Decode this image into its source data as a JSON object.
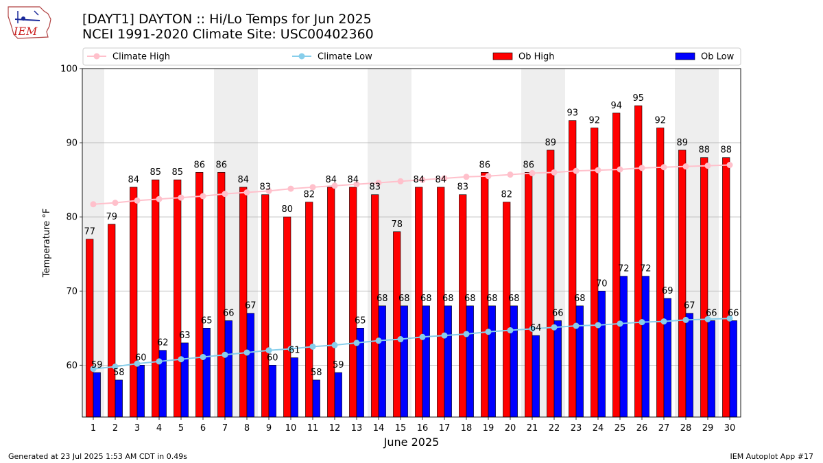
{
  "title_line1": "[DAYT1] DAYTON :: Hi/Lo Temps for Jun 2025",
  "title_line2": "NCEI 1991-2020 Climate Site: USC00402360",
  "logo_text": "IEM",
  "footer_left": "Generated at 23 Jul 2025 1:53 AM CDT in 0.49s",
  "footer_right": "IEM Autoplot App #17",
  "colors": {
    "ob_high": "#ff0000",
    "ob_low": "#0000ff",
    "climate_high": "#ffc0cb",
    "climate_low": "#87ceeb",
    "weekend_shade": "#eeeeee",
    "grid": "#b0b0b0"
  },
  "chart_data": {
    "type": "bar",
    "xlabel": "June 2025",
    "ylabel": "Temperature °F",
    "ylim": [
      53,
      100
    ],
    "yticks": [
      60,
      70,
      80,
      90,
      100
    ],
    "grid": "horizontal",
    "legend_position": "top",
    "categories": [
      "1",
      "2",
      "3",
      "4",
      "5",
      "6",
      "7",
      "8",
      "9",
      "10",
      "11",
      "12",
      "13",
      "14",
      "15",
      "16",
      "17",
      "18",
      "19",
      "20",
      "21",
      "22",
      "23",
      "24",
      "25",
      "26",
      "27",
      "28",
      "29",
      "30"
    ],
    "shaded_days": [
      1,
      7,
      8,
      14,
      15,
      21,
      22,
      28,
      29
    ],
    "series": [
      {
        "name": "Climate High",
        "kind": "line",
        "color": "#ffc0cb",
        "values": [
          81.7,
          81.9,
          82.2,
          82.4,
          82.6,
          82.8,
          83.1,
          83.3,
          83.5,
          83.8,
          84.0,
          84.2,
          84.4,
          84.6,
          84.8,
          85.0,
          85.2,
          85.4,
          85.5,
          85.7,
          85.9,
          86.0,
          86.2,
          86.3,
          86.4,
          86.6,
          86.7,
          86.8,
          86.9,
          87.0
        ]
      },
      {
        "name": "Climate Low",
        "kind": "line",
        "color": "#87ceeb",
        "values": [
          59.5,
          59.8,
          60.2,
          60.5,
          60.8,
          61.1,
          61.4,
          61.7,
          62.0,
          62.2,
          62.5,
          62.7,
          63.0,
          63.3,
          63.5,
          63.8,
          64.0,
          64.2,
          64.5,
          64.7,
          64.9,
          65.1,
          65.3,
          65.4,
          65.6,
          65.8,
          65.9,
          66.1,
          66.2,
          66.3
        ]
      },
      {
        "name": "Ob High",
        "kind": "bar",
        "color": "#ff0000",
        "values": [
          77,
          79,
          84,
          85,
          85,
          86,
          86,
          84,
          83,
          80,
          82,
          84,
          84,
          83,
          78,
          84,
          84,
          83,
          86,
          82,
          86,
          89,
          93,
          92,
          94,
          95,
          92,
          89,
          88,
          88
        ]
      },
      {
        "name": "Ob Low",
        "kind": "bar",
        "color": "#0000ff",
        "values": [
          59,
          58,
          60,
          62,
          63,
          65,
          66,
          67,
          60,
          61,
          58,
          59,
          65,
          68,
          68,
          68,
          68,
          68,
          68,
          68,
          64,
          66,
          68,
          70,
          72,
          72,
          69,
          67,
          66,
          66
        ]
      }
    ]
  }
}
